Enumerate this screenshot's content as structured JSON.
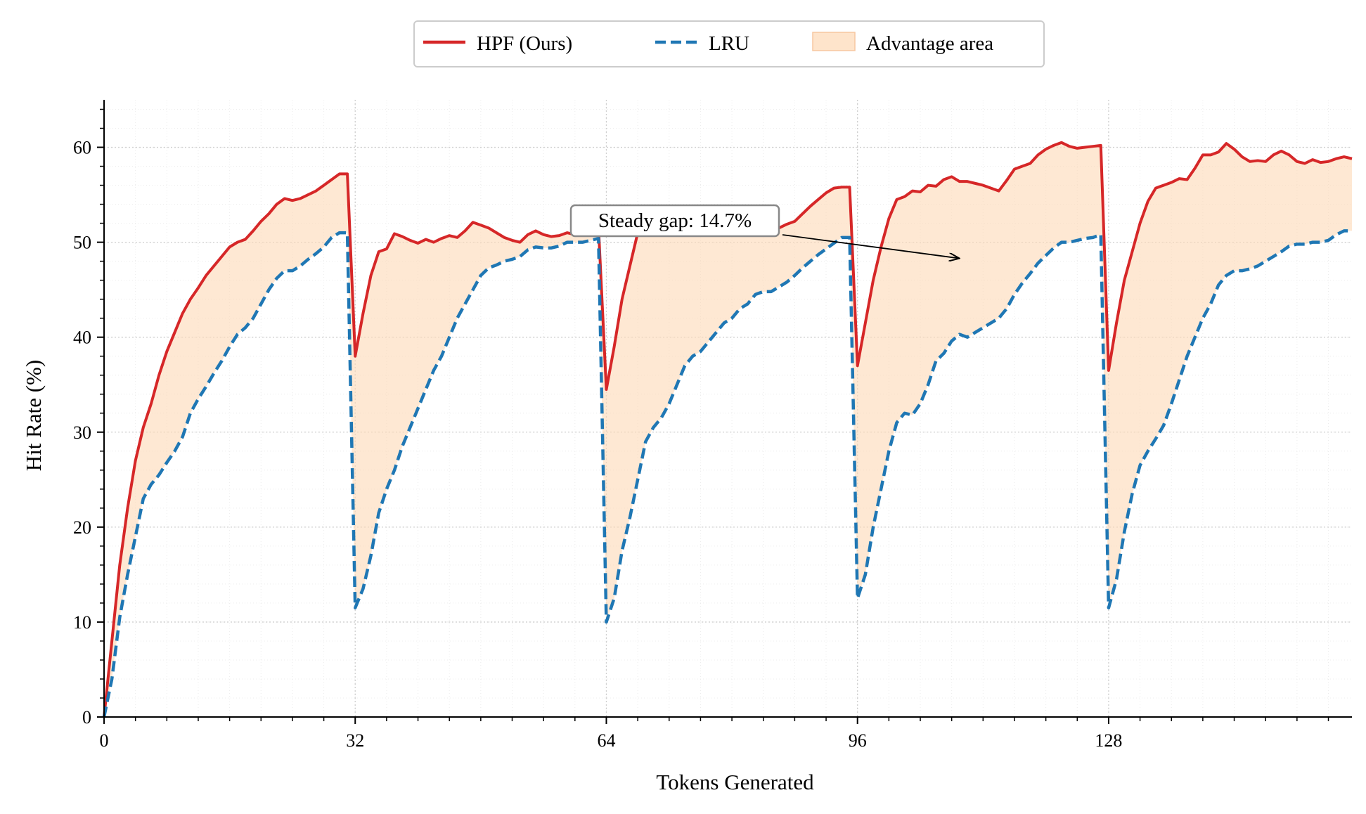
{
  "chart_data": {
    "type": "line",
    "xlabel": "Tokens Generated",
    "ylabel": "Hit Rate (%)",
    "xlim": [
      0,
      159
    ],
    "ylim": [
      0,
      65
    ],
    "xticks": [
      0,
      32,
      64,
      96,
      128
    ],
    "yticks": [
      0,
      10,
      20,
      30,
      40,
      50,
      60
    ],
    "grid": true,
    "legend_position": "top-center",
    "legend": [
      {
        "label": "HPF (Ours)",
        "style": "solid",
        "color": "#d62728"
      },
      {
        "label": "LRU",
        "style": "dashed",
        "color": "#1f77b4"
      },
      {
        "label": "Advantage area",
        "style": "fill",
        "color": "#fdd9b5"
      }
    ],
    "annotation": {
      "text": "Steady gap: 14.7%",
      "target_x": 109,
      "target_y": 48.3
    },
    "series": [
      {
        "name": "HPF (Ours)",
        "color": "#d62728",
        "points": [
          [
            0,
            0
          ],
          [
            1,
            8
          ],
          [
            2,
            16
          ],
          [
            3,
            22
          ],
          [
            4,
            27
          ],
          [
            5,
            30.5
          ],
          [
            6,
            33
          ],
          [
            7,
            36
          ],
          [
            8,
            38.5
          ],
          [
            9,
            40.5
          ],
          [
            10,
            42.5
          ],
          [
            11,
            44
          ],
          [
            12,
            45.2
          ],
          [
            13,
            46.5
          ],
          [
            14,
            47.5
          ],
          [
            15,
            48.5
          ],
          [
            16,
            49.5
          ],
          [
            17,
            50
          ],
          [
            18,
            50.3
          ],
          [
            19,
            51.2
          ],
          [
            20,
            52.2
          ],
          [
            21,
            53
          ],
          [
            22,
            54
          ],
          [
            23,
            54.6
          ],
          [
            24,
            54.4
          ],
          [
            25,
            54.6
          ],
          [
            26,
            55
          ],
          [
            27,
            55.4
          ],
          [
            28,
            56
          ],
          [
            29,
            56.6
          ],
          [
            30,
            57.2
          ],
          [
            31,
            57.2
          ],
          [
            32,
            38
          ],
          [
            33,
            42.5
          ],
          [
            34,
            46.5
          ],
          [
            35,
            49
          ],
          [
            36,
            49.3
          ],
          [
            37,
            50.9
          ],
          [
            38,
            50.6
          ],
          [
            39,
            50.2
          ],
          [
            40,
            49.9
          ],
          [
            41,
            50.3
          ],
          [
            42,
            50
          ],
          [
            43,
            50.4
          ],
          [
            44,
            50.7
          ],
          [
            45,
            50.5
          ],
          [
            46,
            51.2
          ],
          [
            47,
            52.1
          ],
          [
            48,
            51.8
          ],
          [
            49,
            51.5
          ],
          [
            50,
            51
          ],
          [
            51,
            50.5
          ],
          [
            52,
            50.2
          ],
          [
            53,
            50
          ],
          [
            54,
            50.8
          ],
          [
            55,
            51.2
          ],
          [
            56,
            50.8
          ],
          [
            57,
            50.6
          ],
          [
            58,
            50.7
          ],
          [
            59,
            51
          ],
          [
            60,
            50.8
          ],
          [
            61,
            51
          ],
          [
            62,
            51.2
          ],
          [
            63,
            51.6
          ],
          [
            64,
            34.5
          ],
          [
            65,
            39
          ],
          [
            66,
            44
          ],
          [
            67,
            47.5
          ],
          [
            68,
            51
          ],
          [
            69,
            53.5
          ],
          [
            70,
            53.8
          ],
          [
            71,
            53.3
          ],
          [
            72,
            53.7
          ],
          [
            73,
            53.2
          ],
          [
            74,
            53.4
          ],
          [
            75,
            53.1
          ],
          [
            76,
            52.8
          ],
          [
            77,
            53
          ],
          [
            78,
            52.5
          ],
          [
            79,
            52.3
          ],
          [
            80,
            51.8
          ],
          [
            81,
            51.5
          ],
          [
            82,
            51.8
          ],
          [
            83,
            51.2
          ],
          [
            84,
            51.5
          ],
          [
            85,
            51.3
          ],
          [
            86,
            51.5
          ],
          [
            87,
            51.9
          ],
          [
            88,
            52.2
          ],
          [
            89,
            53
          ],
          [
            90,
            53.8
          ],
          [
            91,
            54.5
          ],
          [
            92,
            55.2
          ],
          [
            93,
            55.7
          ],
          [
            94,
            55.8
          ],
          [
            95,
            55.8
          ],
          [
            96,
            37
          ],
          [
            97,
            41.5
          ],
          [
            98,
            46
          ],
          [
            99,
            49.5
          ],
          [
            100,
            52.5
          ],
          [
            101,
            54.5
          ],
          [
            102,
            54.8
          ],
          [
            103,
            55.4
          ],
          [
            104,
            55.3
          ],
          [
            105,
            56
          ],
          [
            106,
            55.9
          ],
          [
            107,
            56.6
          ],
          [
            108,
            56.9
          ],
          [
            109,
            56.4
          ],
          [
            110,
            56.4
          ],
          [
            111,
            56.2
          ],
          [
            112,
            56
          ],
          [
            113,
            55.7
          ],
          [
            114,
            55.4
          ],
          [
            115,
            56.5
          ],
          [
            116,
            57.7
          ],
          [
            117,
            58
          ],
          [
            118,
            58.3
          ],
          [
            119,
            59.2
          ],
          [
            120,
            59.8
          ],
          [
            121,
            60.2
          ],
          [
            122,
            60.5
          ],
          [
            123,
            60.1
          ],
          [
            124,
            59.9
          ],
          [
            125,
            60
          ],
          [
            126,
            60.1
          ],
          [
            127,
            60.2
          ],
          [
            128,
            36.5
          ],
          [
            129,
            41.5
          ],
          [
            130,
            46
          ],
          [
            131,
            49
          ],
          [
            132,
            52
          ],
          [
            133,
            54.3
          ],
          [
            134,
            55.7
          ],
          [
            135,
            56
          ],
          [
            136,
            56.3
          ],
          [
            137,
            56.7
          ],
          [
            138,
            56.6
          ],
          [
            139,
            57.8
          ],
          [
            140,
            59.2
          ],
          [
            141,
            59.2
          ],
          [
            142,
            59.5
          ],
          [
            143,
            60.4
          ],
          [
            144,
            59.8
          ],
          [
            145,
            59
          ],
          [
            146,
            58.5
          ],
          [
            147,
            58.6
          ],
          [
            148,
            58.5
          ],
          [
            149,
            59.2
          ],
          [
            150,
            59.6
          ],
          [
            151,
            59.2
          ],
          [
            152,
            58.5
          ],
          [
            153,
            58.3
          ],
          [
            154,
            58.7
          ],
          [
            155,
            58.4
          ],
          [
            156,
            58.5
          ],
          [
            157,
            58.8
          ],
          [
            158,
            59
          ],
          [
            159,
            58.8
          ]
        ]
      },
      {
        "name": "LRU",
        "color": "#1f77b4",
        "points": [
          [
            0,
            0
          ],
          [
            1,
            4
          ],
          [
            2,
            10.5
          ],
          [
            3,
            15
          ],
          [
            4,
            19
          ],
          [
            5,
            23
          ],
          [
            6,
            24.5
          ],
          [
            7,
            25.5
          ],
          [
            8,
            26.8
          ],
          [
            9,
            28
          ],
          [
            10,
            29.5
          ],
          [
            11,
            32
          ],
          [
            12,
            33.5
          ],
          [
            13,
            34.8
          ],
          [
            14,
            36.2
          ],
          [
            15,
            37.5
          ],
          [
            16,
            39
          ],
          [
            17,
            40.3
          ],
          [
            18,
            41
          ],
          [
            19,
            42
          ],
          [
            20,
            43.5
          ],
          [
            21,
            45
          ],
          [
            22,
            46.2
          ],
          [
            23,
            47
          ],
          [
            24,
            47
          ],
          [
            25,
            47.5
          ],
          [
            26,
            48.2
          ],
          [
            27,
            48.8
          ],
          [
            28,
            49.5
          ],
          [
            29,
            50.5
          ],
          [
            30,
            51
          ],
          [
            31,
            51
          ],
          [
            32,
            11.5
          ],
          [
            33,
            13.5
          ],
          [
            34,
            17
          ],
          [
            35,
            21.5
          ],
          [
            36,
            24
          ],
          [
            37,
            26
          ],
          [
            38,
            28.5
          ],
          [
            39,
            30.5
          ],
          [
            40,
            32.5
          ],
          [
            41,
            34.5
          ],
          [
            42,
            36.5
          ],
          [
            43,
            38
          ],
          [
            44,
            40
          ],
          [
            45,
            42
          ],
          [
            46,
            43.5
          ],
          [
            47,
            45
          ],
          [
            48,
            46.5
          ],
          [
            49,
            47.3
          ],
          [
            50,
            47.6
          ],
          [
            51,
            48
          ],
          [
            52,
            48.2
          ],
          [
            53,
            48.5
          ],
          [
            54,
            49.2
          ],
          [
            55,
            49.5
          ],
          [
            56,
            49.4
          ],
          [
            57,
            49.4
          ],
          [
            58,
            49.6
          ],
          [
            59,
            50
          ],
          [
            60,
            50
          ],
          [
            61,
            50
          ],
          [
            62,
            50.2
          ],
          [
            63,
            50.4
          ],
          [
            64,
            10
          ],
          [
            65,
            12.5
          ],
          [
            66,
            17.5
          ],
          [
            67,
            21
          ],
          [
            68,
            25
          ],
          [
            69,
            29
          ],
          [
            70,
            30.5
          ],
          [
            71,
            31.5
          ],
          [
            72,
            33
          ],
          [
            73,
            35
          ],
          [
            74,
            37
          ],
          [
            75,
            38
          ],
          [
            76,
            38.5
          ],
          [
            77,
            39.5
          ],
          [
            78,
            40.5
          ],
          [
            79,
            41.5
          ],
          [
            80,
            42
          ],
          [
            81,
            43
          ],
          [
            82,
            43.5
          ],
          [
            83,
            44.5
          ],
          [
            84,
            44.8
          ],
          [
            85,
            44.8
          ],
          [
            86,
            45.3
          ],
          [
            87,
            45.8
          ],
          [
            88,
            46.5
          ],
          [
            89,
            47.3
          ],
          [
            90,
            48
          ],
          [
            91,
            48.7
          ],
          [
            92,
            49.3
          ],
          [
            93,
            49.9
          ],
          [
            94,
            50.5
          ],
          [
            95,
            50.5
          ],
          [
            96,
            12.5
          ],
          [
            97,
            15
          ],
          [
            98,
            20
          ],
          [
            99,
            24
          ],
          [
            100,
            28
          ],
          [
            101,
            31
          ],
          [
            102,
            32
          ],
          [
            103,
            31.8
          ],
          [
            104,
            33
          ],
          [
            105,
            35
          ],
          [
            106,
            37.5
          ],
          [
            107,
            38.3
          ],
          [
            108,
            39.6
          ],
          [
            109,
            40.3
          ],
          [
            110,
            40
          ],
          [
            111,
            40.5
          ],
          [
            112,
            41
          ],
          [
            113,
            41.5
          ],
          [
            114,
            42
          ],
          [
            115,
            43
          ],
          [
            116,
            44.5
          ],
          [
            117,
            45.7
          ],
          [
            118,
            46.7
          ],
          [
            119,
            47.8
          ],
          [
            120,
            48.6
          ],
          [
            121,
            49.4
          ],
          [
            122,
            50
          ],
          [
            123,
            50
          ],
          [
            124,
            50.2
          ],
          [
            125,
            50.4
          ],
          [
            126,
            50.5
          ],
          [
            127,
            50.8
          ],
          [
            128,
            11.5
          ],
          [
            129,
            14.5
          ],
          [
            130,
            19.5
          ],
          [
            131,
            23.5
          ],
          [
            132,
            26.5
          ],
          [
            133,
            28
          ],
          [
            134,
            29.3
          ],
          [
            135,
            30.7
          ],
          [
            136,
            33
          ],
          [
            137,
            35.5
          ],
          [
            138,
            38
          ],
          [
            139,
            40
          ],
          [
            140,
            42
          ],
          [
            141,
            43.5
          ],
          [
            142,
            45.5
          ],
          [
            143,
            46.5
          ],
          [
            144,
            47
          ],
          [
            145,
            47
          ],
          [
            146,
            47.2
          ],
          [
            147,
            47.5
          ],
          [
            148,
            48
          ],
          [
            149,
            48.5
          ],
          [
            150,
            49
          ],
          [
            151,
            49.6
          ],
          [
            152,
            49.8
          ],
          [
            153,
            49.8
          ],
          [
            154,
            50
          ],
          [
            155,
            50
          ],
          [
            156,
            50.2
          ],
          [
            157,
            50.8
          ],
          [
            158,
            51.2
          ],
          [
            159,
            51.2
          ]
        ]
      }
    ]
  }
}
